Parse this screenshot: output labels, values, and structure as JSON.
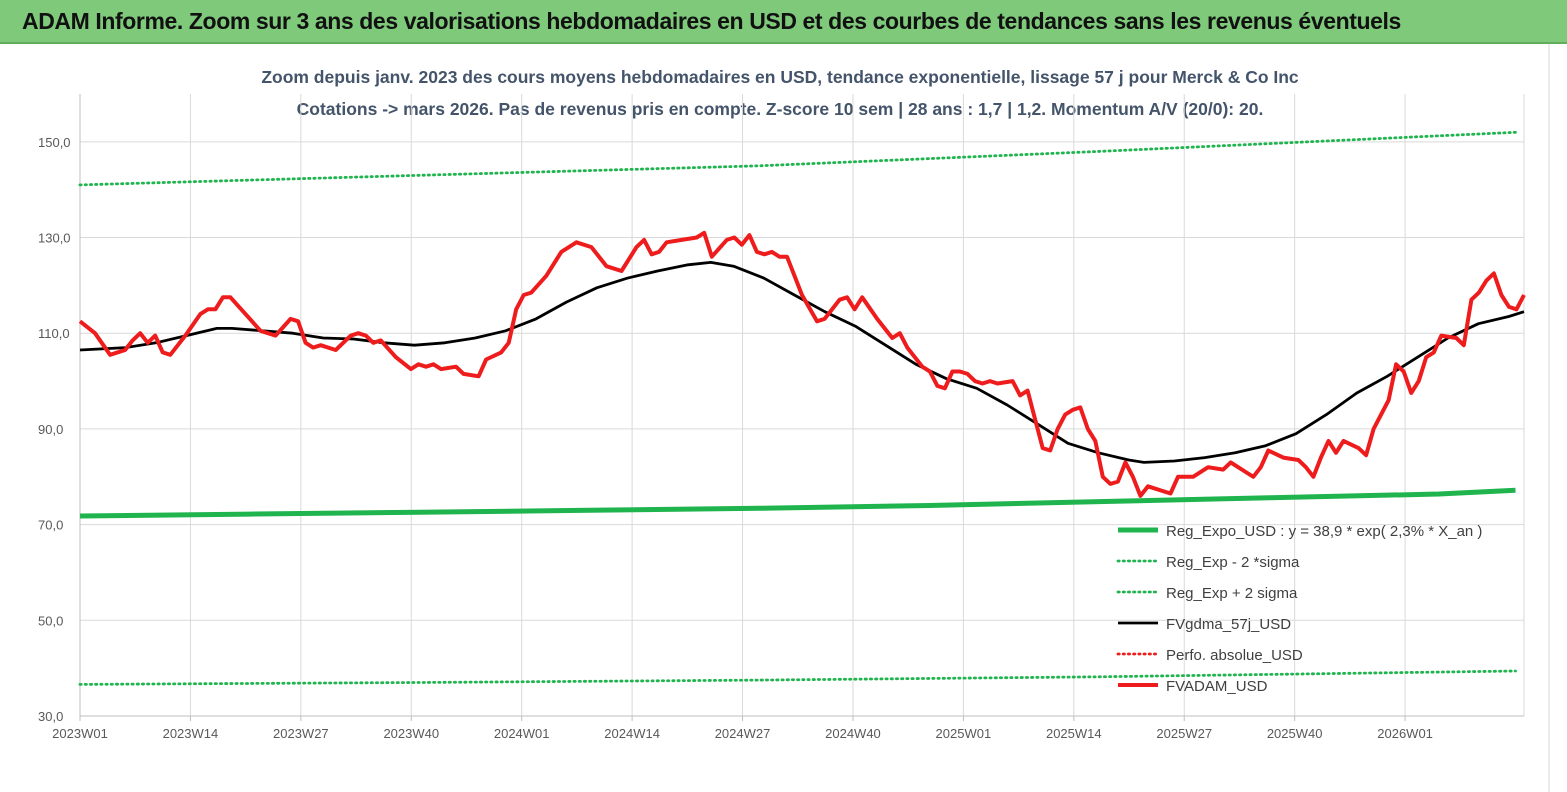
{
  "banner": {
    "title": "ADAM Informe. Zoom sur 3 ans des valorisations hebdomadaires en USD et des courbes de tendances sans les revenus éventuels"
  },
  "colors": {
    "banner_bg": "#7ec97a",
    "regression": "#1fb44e",
    "sigma_band": "#1fb44e",
    "moving_average": "#000000",
    "price": "#ee1c1c",
    "perfo": "#ee1c1c",
    "gridline": "#d9d9d9"
  },
  "chart_data": {
    "type": "line",
    "title_line1": "Zoom depuis janv. 2023 des cours moyens hebdomadaires en USD, tendance exponentielle, lissage 57 j pour Merck & Co Inc",
    "title_line2": "Cotations -> mars 2026. Pas de revenus pris en compte. Z-score 10 sem | 28 ans : 1,7 | 1,2. Momentum A/V (20/0): 20.",
    "xlabel": "",
    "ylabel": "",
    "ylim": [
      30,
      160
    ],
    "y_ticks": [
      "30,0",
      "50,0",
      "70,0",
      "90,0",
      "110,0",
      "130,0",
      "150,0"
    ],
    "x_ticks": [
      "2023W01",
      "2023W14",
      "2023W27",
      "2023W40",
      "2024W01",
      "2024W14",
      "2024W27",
      "2024W40",
      "2025W01",
      "2025W14",
      "2025W27",
      "2025W40",
      "2026W01"
    ],
    "week_count": 170,
    "grid": true,
    "legend_position": "bottom-right",
    "series": [
      {
        "name": "Reg_Expo_USD : y = 38,9 * exp( 2,3% *  X_an )",
        "style": "solid-thick",
        "color": "#1fb44e",
        "knots": [
          [
            0,
            71.8
          ],
          [
            20,
            72.2
          ],
          [
            40,
            72.6
          ],
          [
            60,
            73.0
          ],
          [
            80,
            73.4
          ],
          [
            100,
            74.0
          ],
          [
            120,
            74.8
          ],
          [
            140,
            75.6
          ],
          [
            160,
            76.4
          ],
          [
            169,
            77.2
          ]
        ]
      },
      {
        "name": "Reg_Exp - 2 *sigma",
        "style": "dotted",
        "color": "#1fb44e",
        "knots": [
          [
            0,
            36.6
          ],
          [
            40,
            37.0
          ],
          [
            80,
            37.5
          ],
          [
            120,
            38.2
          ],
          [
            169,
            39.4
          ]
        ]
      },
      {
        "name": "Reg_Exp + 2 sigma",
        "style": "dotted",
        "color": "#1fb44e",
        "knots": [
          [
            0,
            141.0
          ],
          [
            40,
            143.0
          ],
          [
            80,
            145.0
          ],
          [
            120,
            148.0
          ],
          [
            169,
            152.0
          ]
        ]
      },
      {
        "name": "FVgdma_57j_USD",
        "style": "solid",
        "color": "#000000",
        "knots": [
          [
            0,
            106.5
          ],
          [
            6,
            107
          ],
          [
            10,
            108
          ],
          [
            14,
            109.5
          ],
          [
            18,
            111
          ],
          [
            20,
            111
          ],
          [
            24,
            110.5
          ],
          [
            28,
            110
          ],
          [
            32,
            109
          ],
          [
            36,
            108.8
          ],
          [
            40,
            108
          ],
          [
            44,
            107.5
          ],
          [
            48,
            108
          ],
          [
            52,
            109
          ],
          [
            56,
            110.5
          ],
          [
            60,
            113
          ],
          [
            64,
            116.5
          ],
          [
            68,
            119.5
          ],
          [
            72,
            121.5
          ],
          [
            76,
            123
          ],
          [
            80,
            124.3
          ],
          [
            83,
            124.8
          ],
          [
            86,
            124
          ],
          [
            90,
            121.5
          ],
          [
            94,
            118
          ],
          [
            98,
            114.5
          ],
          [
            102,
            111.5
          ],
          [
            106,
            107.5
          ],
          [
            110,
            103.5
          ],
          [
            114,
            100.5
          ],
          [
            118,
            98.5
          ],
          [
            122,
            95
          ],
          [
            126,
            91
          ],
          [
            130,
            87
          ],
          [
            134,
            85
          ],
          [
            138,
            83.5
          ],
          [
            140,
            83
          ],
          [
            144,
            83.3
          ],
          [
            148,
            84
          ],
          [
            152,
            85
          ],
          [
            156,
            86.5
          ],
          [
            160,
            89
          ],
          [
            164,
            93
          ],
          [
            168,
            97.5
          ],
          [
            172,
            101
          ],
          [
            176,
            105
          ],
          [
            180,
            109
          ],
          [
            184,
            112
          ],
          [
            188,
            113.5
          ],
          [
            190,
            114.5
          ]
        ]
      },
      {
        "name": "Perfo. absolue_USD",
        "style": "dotted",
        "color": "#ee1c1c",
        "knots": []
      },
      {
        "name": "FVADAM_USD",
        "style": "solid-thick",
        "color": "#ee1c1c",
        "knots": [
          [
            0,
            112.5
          ],
          [
            2,
            110
          ],
          [
            4,
            105.5
          ],
          [
            6,
            106.5
          ],
          [
            7,
            108.5
          ],
          [
            8,
            110
          ],
          [
            9,
            108
          ],
          [
            10,
            109.5
          ],
          [
            11,
            106
          ],
          [
            12,
            105.5
          ],
          [
            14,
            109.5
          ],
          [
            16,
            114
          ],
          [
            17,
            115
          ],
          [
            18,
            115
          ],
          [
            19,
            117.5
          ],
          [
            20,
            117.5
          ],
          [
            22,
            114
          ],
          [
            24,
            110.5
          ],
          [
            26,
            109.5
          ],
          [
            28,
            113
          ],
          [
            29,
            112.5
          ],
          [
            30,
            108
          ],
          [
            31,
            107
          ],
          [
            32,
            107.5
          ],
          [
            34,
            106.5
          ],
          [
            36,
            109.5
          ],
          [
            37,
            110
          ],
          [
            38,
            109.5
          ],
          [
            39,
            108
          ],
          [
            40,
            108.5
          ],
          [
            42,
            105
          ],
          [
            44,
            102.5
          ],
          [
            45,
            103.5
          ],
          [
            46,
            103
          ],
          [
            47,
            103.5
          ],
          [
            48,
            102.5
          ],
          [
            50,
            103
          ],
          [
            51,
            101.5
          ],
          [
            53,
            101
          ],
          [
            54,
            104.5
          ],
          [
            56,
            106
          ],
          [
            57,
            108
          ],
          [
            58,
            115
          ],
          [
            59,
            118
          ],
          [
            60,
            118.5
          ],
          [
            62,
            122
          ],
          [
            64,
            127
          ],
          [
            66,
            129
          ],
          [
            68,
            128
          ],
          [
            70,
            124
          ],
          [
            72,
            123
          ],
          [
            74,
            128
          ],
          [
            75,
            129.5
          ],
          [
            76,
            126.5
          ],
          [
            77,
            127
          ],
          [
            78,
            129
          ],
          [
            80,
            129.5
          ],
          [
            82,
            130
          ],
          [
            83,
            131
          ],
          [
            84,
            126
          ],
          [
            86,
            129.5
          ],
          [
            87,
            130
          ],
          [
            88,
            128.5
          ],
          [
            89,
            130.5
          ],
          [
            90,
            127
          ],
          [
            91,
            126.5
          ],
          [
            92,
            127
          ],
          [
            93,
            126
          ],
          [
            94,
            126
          ],
          [
            96,
            118
          ],
          [
            98,
            112.5
          ],
          [
            99,
            113
          ],
          [
            101,
            117
          ],
          [
            102,
            117.5
          ],
          [
            103,
            115
          ],
          [
            104,
            117.5
          ],
          [
            106,
            113
          ],
          [
            108,
            109
          ],
          [
            109,
            110
          ],
          [
            110,
            107
          ],
          [
            112,
            103
          ],
          [
            113,
            102
          ],
          [
            114,
            99
          ],
          [
            115,
            98.5
          ],
          [
            116,
            102
          ],
          [
            117,
            102
          ],
          [
            118,
            101.5
          ],
          [
            119,
            100
          ],
          [
            120,
            99.5
          ],
          [
            121,
            100
          ],
          [
            122,
            99.5
          ],
          [
            124,
            100
          ],
          [
            125,
            97
          ],
          [
            126,
            98
          ],
          [
            127,
            92
          ],
          [
            128,
            86
          ],
          [
            129,
            85.5
          ],
          [
            130,
            90
          ],
          [
            131,
            93
          ],
          [
            132,
            94
          ],
          [
            133,
            94.5
          ],
          [
            134,
            90
          ],
          [
            135,
            87.5
          ],
          [
            136,
            80
          ],
          [
            137,
            78.5
          ],
          [
            138,
            79
          ],
          [
            139,
            83
          ],
          [
            140,
            80
          ],
          [
            141,
            76
          ],
          [
            142,
            78
          ],
          [
            144,
            77
          ],
          [
            145,
            76.5
          ],
          [
            146,
            80
          ],
          [
            148,
            80
          ],
          [
            150,
            82
          ],
          [
            152,
            81.5
          ],
          [
            153,
            83
          ],
          [
            154,
            82
          ],
          [
            155,
            81
          ],
          [
            156,
            80
          ],
          [
            157,
            82
          ],
          [
            158,
            85.5
          ],
          [
            160,
            84
          ],
          [
            162,
            83.5
          ],
          [
            163,
            82
          ],
          [
            164,
            80
          ],
          [
            165,
            84
          ],
          [
            166,
            87.5
          ],
          [
            167,
            85
          ],
          [
            168,
            87.5
          ],
          [
            170,
            86
          ],
          [
            171,
            84.5
          ],
          [
            172,
            90
          ],
          [
            174,
            96
          ],
          [
            175,
            103.5
          ],
          [
            176,
            102
          ],
          [
            177,
            97.5
          ],
          [
            178,
            100
          ],
          [
            179,
            105
          ],
          [
            180,
            106
          ],
          [
            181,
            109.5
          ],
          [
            183,
            109
          ],
          [
            184,
            107.5
          ],
          [
            185,
            117
          ],
          [
            186,
            118.5
          ],
          [
            187,
            121
          ],
          [
            188,
            122.5
          ],
          [
            189,
            118
          ],
          [
            190,
            115.5
          ],
          [
            191,
            115
          ],
          [
            192,
            118
          ]
        ]
      }
    ]
  }
}
